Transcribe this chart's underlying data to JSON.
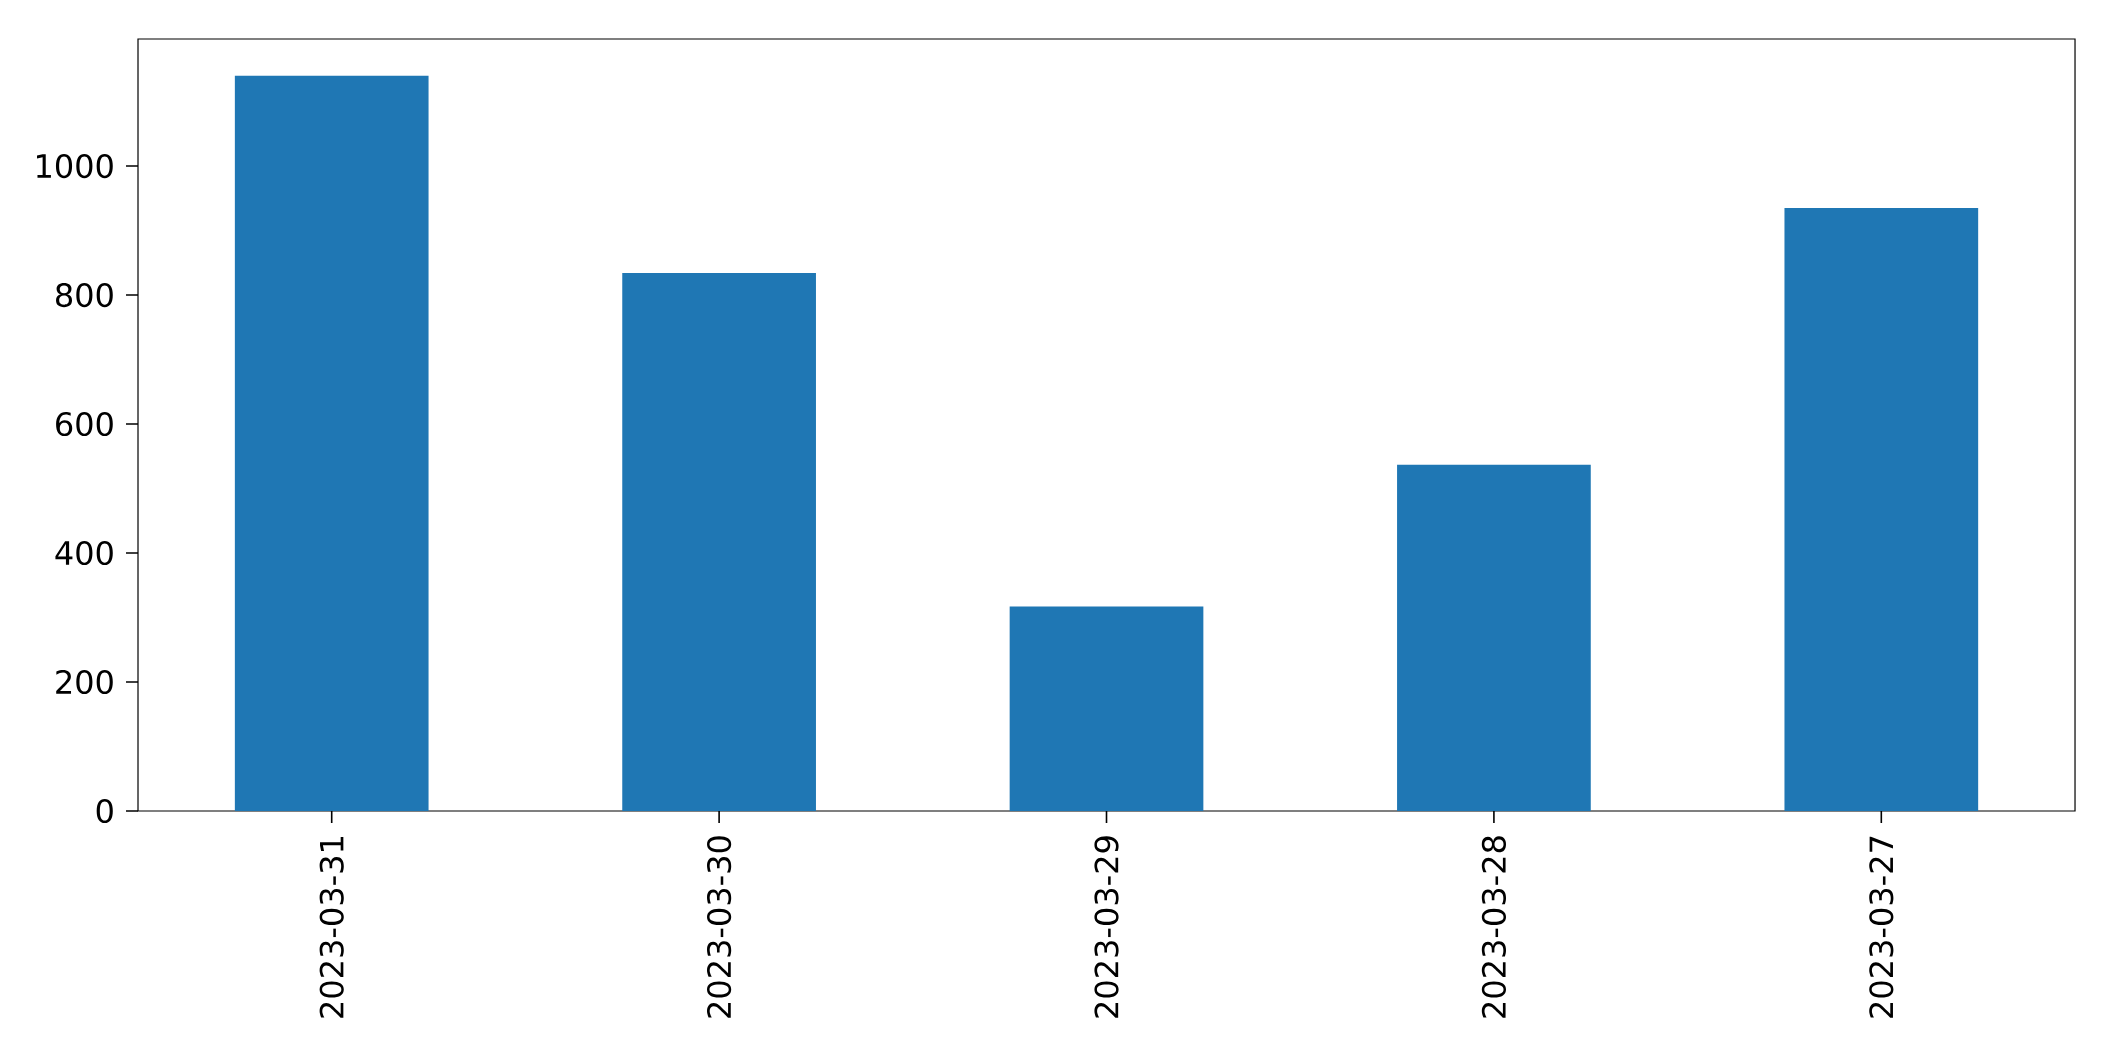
{
  "chart_data": {
    "type": "bar",
    "categories": [
      "2023-03-31",
      "2023-03-30",
      "2023-03-29",
      "2023-03-28",
      "2023-03-27"
    ],
    "values": [
      1140,
      834,
      317,
      537,
      935
    ],
    "color": "#1f77b4",
    "ylim": [
      0,
      1197
    ],
    "yticks": [
      0,
      200,
      400,
      600,
      800,
      1000
    ]
  }
}
